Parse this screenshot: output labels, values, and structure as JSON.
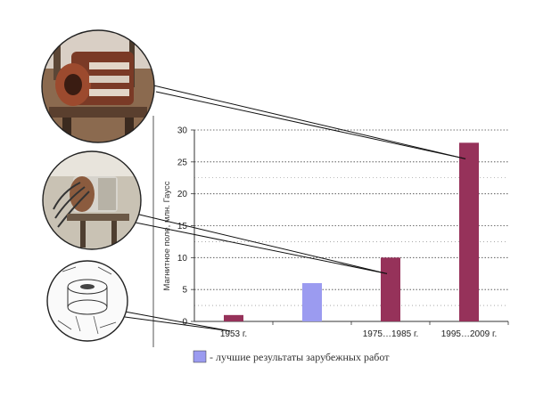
{
  "chart_data": {
    "type": "bar",
    "categories": [
      "1953 г.",
      "",
      "1975…1985 г.",
      "1995…2009 г."
    ],
    "series": [
      {
        "values": [
          1,
          null,
          10,
          28
        ],
        "color": "#96325a"
      },
      {
        "values": [
          null,
          6,
          null,
          null
        ],
        "color": "#9b9bf0"
      }
    ],
    "ylabel": "Магнитное поле, млн. Гаусс",
    "ylim": [
      0,
      30
    ],
    "yticks": [
      0,
      5,
      10,
      15,
      20,
      25,
      30
    ],
    "grid": true,
    "legend": {
      "text": "- лучшие результаты зарубежных работ",
      "color": "#9b9bf0",
      "placement": "bottom"
    }
  },
  "photos": [
    {
      "name": "generator-photo-large-icon",
      "target_category": 3
    },
    {
      "name": "generator-photo-medium-icon",
      "target_category": 2
    },
    {
      "name": "generator-drawing-small-icon",
      "target_category": 0
    }
  ]
}
